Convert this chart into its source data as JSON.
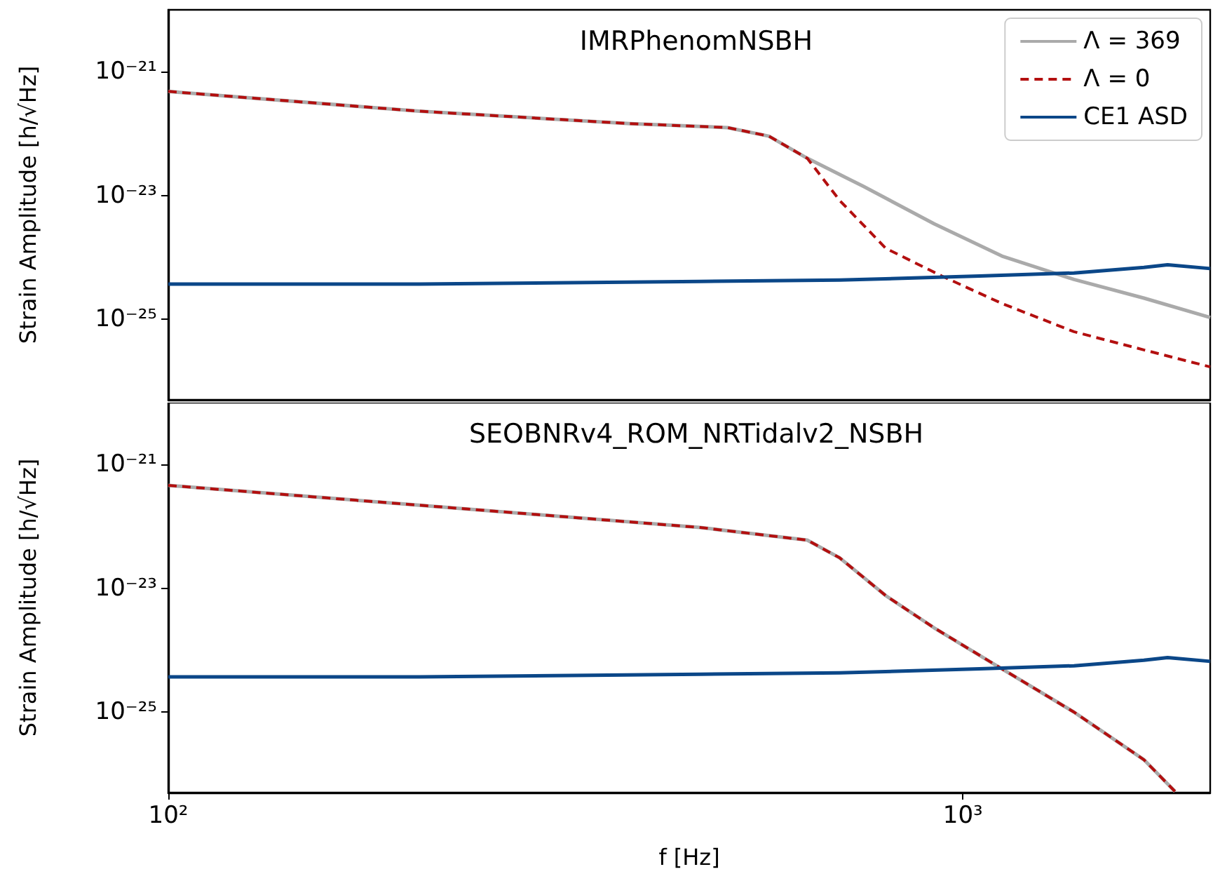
{
  "chart_data": [
    {
      "type": "line",
      "title": "IMRPhenomNSBH",
      "ylabel": "Strain Amplitude [h/√Hz]",
      "log": "xy",
      "xlim": [
        100,
        2048
      ],
      "ylim": [
        5e-27,
        1e-20
      ],
      "yticks": [
        {
          "value": 1e-21,
          "label": "10⁻²¹"
        },
        {
          "value": 1e-23,
          "label": "10⁻²³"
        },
        {
          "value": 1e-25,
          "label": "10⁻²⁵"
        }
      ],
      "tick_labels": "y",
      "legend": "top right",
      "grid": false,
      "marker": "none",
      "series": [
        {
          "name": "Λ = 369",
          "color": "#aaaaaa",
          "line_style": "solid",
          "x": [
            100,
            207,
            381,
            506,
            570,
            637,
            750,
            920,
            1120,
            1380,
            1690,
            2048
          ],
          "values": [
            4.8e-22,
            2.3e-22,
            1.45e-22,
            1.25e-22,
            9.1e-23,
            4e-23,
            1.4e-23,
            3.5e-24,
            1.05e-24,
            4.4e-25,
            2.2e-25,
            1.07e-25
          ]
        },
        {
          "name": "Λ = 0",
          "color": "#b30f0f",
          "line_style": "dashed",
          "x": [
            100,
            207,
            381,
            506,
            570,
            637,
            700,
            800,
            941,
            1120,
            1380,
            1690,
            2048
          ],
          "values": [
            4.8e-22,
            2.3e-22,
            1.45e-22,
            1.25e-22,
            9.1e-23,
            4e-23,
            8.3e-24,
            1.4e-24,
            5e-25,
            1.8e-25,
            6.3e-26,
            3.2e-26,
            1.7e-26
          ]
        },
        {
          "name": "CE1 ASD",
          "color": "#0b4788",
          "line_style": "solid",
          "x": [
            100,
            207,
            467,
            700,
            1050,
            1380,
            1690,
            1810,
            2048
          ],
          "values": [
            3.7e-25,
            3.7e-25,
            4.1e-25,
            4.3e-25,
            5e-25,
            5.6e-25,
            6.9e-25,
            7.6e-25,
            6.6e-25
          ]
        }
      ]
    },
    {
      "type": "line",
      "title": "SEOBNRv4_ROM_NRTidalv2_NSBH",
      "ylabel": "Strain Amplitude [h/√Hz]",
      "xlabel": "f [Hz]",
      "log": "xy",
      "xlim": [
        100,
        2048
      ],
      "ylim": [
        5e-27,
        1e-20
      ],
      "xticks": [
        {
          "value": 100,
          "label": "10²"
        },
        {
          "value": 1000,
          "label": "10³"
        }
      ],
      "yticks": [
        {
          "value": 1e-21,
          "label": "10⁻²¹"
        },
        {
          "value": 1e-23,
          "label": "10⁻²³"
        },
        {
          "value": 1e-25,
          "label": "10⁻²⁵"
        }
      ],
      "grid": false,
      "marker": "none",
      "series": [
        {
          "color": "#aaaaaa",
          "line_style": "solid",
          "x": [
            100,
            207,
            467,
            637,
            700,
            800,
            920,
            1120,
            1380,
            1690,
            1850
          ],
          "values": [
            4.6e-22,
            2.2e-22,
            9.6e-23,
            6e-23,
            3.1e-23,
            7.6e-24,
            2.3e-24,
            5e-25,
            1e-25,
            1.7e-26,
            5.2e-27
          ]
        },
        {
          "color": "#b30f0f",
          "line_style": "dashed",
          "x": [
            100,
            207,
            467,
            637,
            700,
            800,
            920,
            1120,
            1380,
            1690,
            1850
          ],
          "values": [
            4.6e-22,
            2.2e-22,
            9.6e-23,
            6e-23,
            3.1e-23,
            7.6e-24,
            2.3e-24,
            5e-25,
            1e-25,
            1.7e-26,
            5.2e-27
          ]
        },
        {
          "color": "#0b4788",
          "line_style": "solid",
          "x": [
            100,
            207,
            467,
            700,
            1050,
            1380,
            1690,
            1810,
            2048
          ],
          "values": [
            3.7e-25,
            3.7e-25,
            4.1e-25,
            4.3e-25,
            5e-25,
            5.6e-25,
            6.9e-25,
            7.6e-25,
            6.6e-25
          ]
        }
      ]
    }
  ]
}
